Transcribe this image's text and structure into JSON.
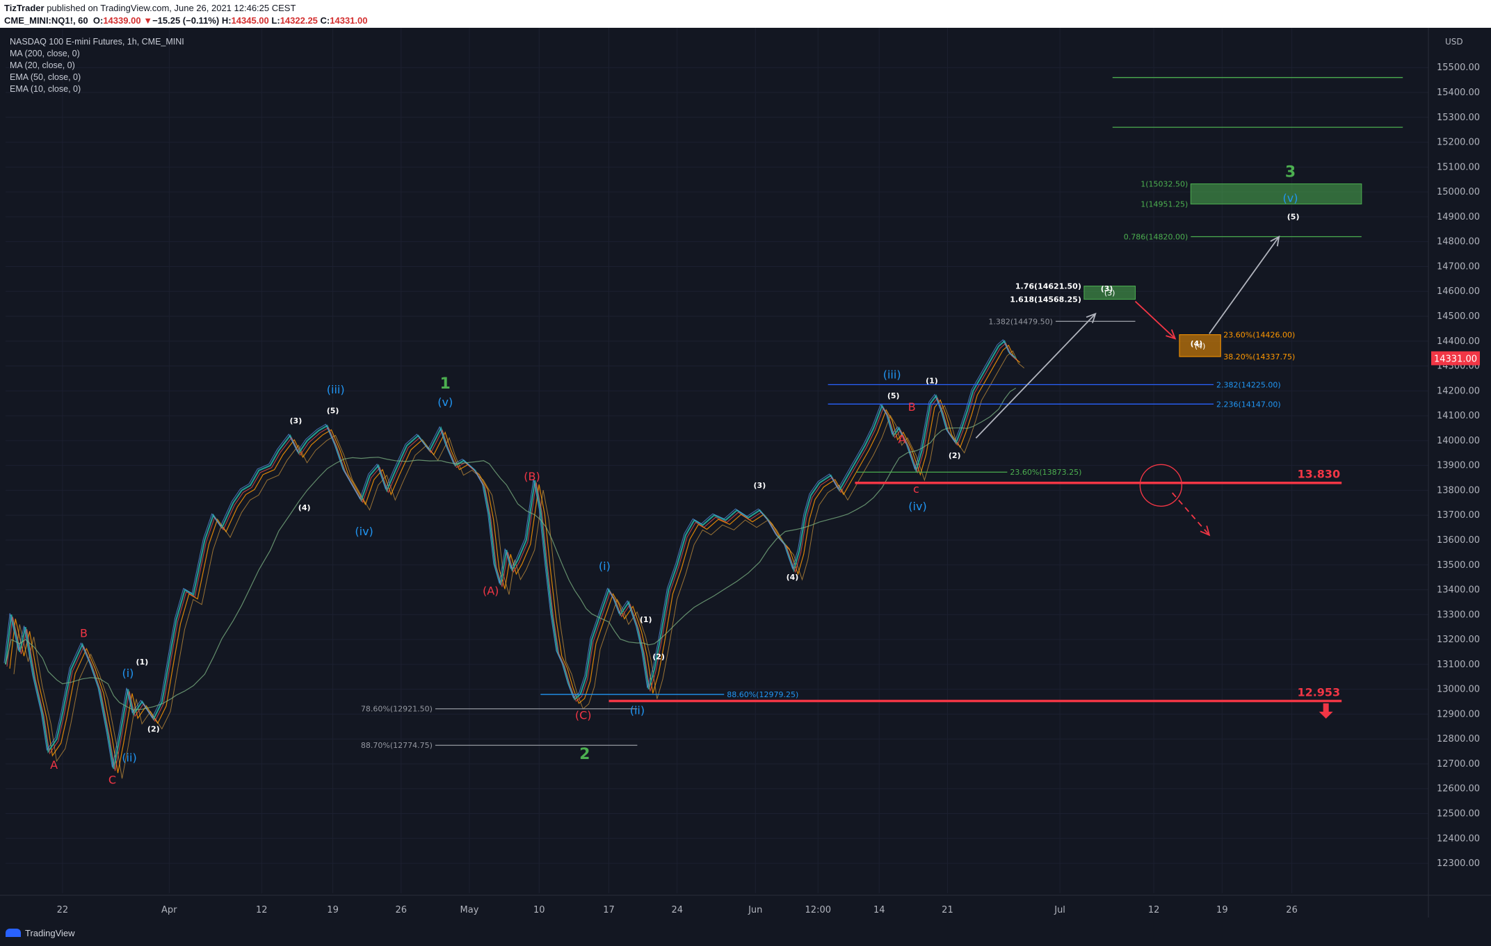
{
  "header": {
    "author": "TizTrader",
    "published": "published on TradingView.com, June 26, 2021 12:46:25 CEST",
    "symbol": "CME_MINI:NQ1!, 60",
    "open": "14339.00",
    "change": "−15.25 (−0.11%)",
    "high": "14345.00",
    "low": "14322.25",
    "close": "14331.00"
  },
  "legend": [
    "NASDAQ 100 E-mini Futures, 1h, CME_MINI",
    "MA (200, close, 0)",
    "MA (20, close, 0)",
    "EMA (50, close, 0)",
    "EMA (10, close, 0)"
  ],
  "currency": "USD",
  "current_price_tag": "14331.00",
  "footer": {
    "brand": "TradingView"
  },
  "colors": {
    "background": "#131722",
    "axis_text": "#b2b5be",
    "green": "#4caf50",
    "blue": "#2196f3",
    "red": "#f23645",
    "orange": "#ff9800",
    "white": "#ffffff"
  },
  "chart_data": {
    "type": "line",
    "yaxis": {
      "min": 12200,
      "max": 15600,
      "ticks": [
        12300,
        12400,
        12500,
        12600,
        12700,
        12800,
        12900,
        13000,
        13100,
        13200,
        13300,
        13400,
        13500,
        13600,
        13700,
        13800,
        13900,
        14000,
        14100,
        14200,
        14300,
        14400,
        14500,
        14600,
        14700,
        14800,
        14900,
        15000,
        15100,
        15200,
        15300,
        15400,
        15500
      ],
      "tick_labels": [
        "12300.00",
        "12400.00",
        "12500.00",
        "12600.00",
        "12700.00",
        "12800.00",
        "12900.00",
        "13000.00",
        "13100.00",
        "13200.00",
        "13300.00",
        "13400.00",
        "13500.00",
        "13600.00",
        "13700.00",
        "13800.00",
        "13900.00",
        "14000.00",
        "14100.00",
        "14200.00",
        "14300.00",
        "14400.00",
        "14500.00",
        "14600.00",
        "14700.00",
        "14800.00",
        "14900.00",
        "15000.00",
        "15100.00",
        "15200.00",
        "15300.00",
        "15400.00",
        "15500.00"
      ]
    },
    "xaxis": {
      "min": 0,
      "max": 1000,
      "ticks": [
        {
          "x": 40,
          "label": "22"
        },
        {
          "x": 115,
          "label": "Apr"
        },
        {
          "x": 180,
          "label": "12"
        },
        {
          "x": 230,
          "label": "19"
        },
        {
          "x": 278,
          "label": "26"
        },
        {
          "x": 326,
          "label": "May"
        },
        {
          "x": 375,
          "label": "10"
        },
        {
          "x": 424,
          "label": "17"
        },
        {
          "x": 472,
          "label": "24"
        },
        {
          "x": 527,
          "label": "Jun"
        },
        {
          "x": 571,
          "label": "12:00"
        },
        {
          "x": 614,
          "label": "14"
        },
        {
          "x": 662,
          "label": "21"
        },
        {
          "x": 741,
          "label": "Jul"
        },
        {
          "x": 807,
          "label": "12"
        },
        {
          "x": 855,
          "label": "19"
        },
        {
          "x": 904,
          "label": "26"
        }
      ]
    },
    "series": [
      {
        "values": [
          [
            0,
            13100
          ],
          [
            4,
            13300
          ],
          [
            10,
            13150
          ],
          [
            14,
            13250
          ],
          [
            20,
            13050
          ],
          [
            26,
            12900
          ],
          [
            30,
            12750
          ],
          [
            36,
            12800
          ],
          [
            40,
            12900
          ],
          [
            46,
            13080
          ],
          [
            54,
            13180
          ],
          [
            60,
            13100
          ],
          [
            66,
            13000
          ],
          [
            72,
            12820
          ],
          [
            76,
            12680
          ],
          [
            80,
            12800
          ],
          [
            86,
            13000
          ],
          [
            90,
            12900
          ],
          [
            96,
            12950
          ],
          [
            104,
            12880
          ],
          [
            110,
            12950
          ],
          [
            116,
            13150
          ],
          [
            120,
            13280
          ],
          [
            126,
            13400
          ],
          [
            132,
            13380
          ],
          [
            140,
            13600
          ],
          [
            146,
            13700
          ],
          [
            152,
            13650
          ],
          [
            160,
            13750
          ],
          [
            166,
            13800
          ],
          [
            172,
            13820
          ],
          [
            178,
            13880
          ],
          [
            186,
            13900
          ],
          [
            192,
            13960
          ],
          [
            200,
            14020
          ],
          [
            206,
            13950
          ],
          [
            212,
            14000
          ],
          [
            220,
            14040
          ],
          [
            226,
            14060
          ],
          [
            232,
            13980
          ],
          [
            238,
            13880
          ],
          [
            244,
            13820
          ],
          [
            250,
            13760
          ],
          [
            256,
            13860
          ],
          [
            262,
            13900
          ],
          [
            268,
            13800
          ],
          [
            274,
            13880
          ],
          [
            282,
            13980
          ],
          [
            290,
            14020
          ],
          [
            298,
            13960
          ],
          [
            306,
            14050
          ],
          [
            310,
            13980
          ],
          [
            316,
            13900
          ],
          [
            322,
            13920
          ],
          [
            330,
            13880
          ],
          [
            336,
            13820
          ],
          [
            340,
            13700
          ],
          [
            344,
            13500
          ],
          [
            348,
            13420
          ],
          [
            352,
            13560
          ],
          [
            356,
            13480
          ],
          [
            360,
            13520
          ],
          [
            366,
            13600
          ],
          [
            372,
            13840
          ],
          [
            376,
            13720
          ],
          [
            380,
            13500
          ],
          [
            384,
            13300
          ],
          [
            388,
            13150
          ],
          [
            392,
            13100
          ],
          [
            396,
            13020
          ],
          [
            400,
            12960
          ],
          [
            404,
            12980
          ],
          [
            408,
            13050
          ],
          [
            412,
            13200
          ],
          [
            418,
            13300
          ],
          [
            424,
            13400
          ],
          [
            428,
            13360
          ],
          [
            432,
            13300
          ],
          [
            438,
            13350
          ],
          [
            444,
            13250
          ],
          [
            448,
            13150
          ],
          [
            452,
            13000
          ],
          [
            456,
            13080
          ],
          [
            460,
            13200
          ],
          [
            466,
            13400
          ],
          [
            472,
            13500
          ],
          [
            478,
            13620
          ],
          [
            484,
            13680
          ],
          [
            490,
            13660
          ],
          [
            498,
            13700
          ],
          [
            506,
            13680
          ],
          [
            514,
            13720
          ],
          [
            522,
            13690
          ],
          [
            530,
            13720
          ],
          [
            536,
            13680
          ],
          [
            542,
            13620
          ],
          [
            548,
            13580
          ],
          [
            554,
            13480
          ],
          [
            558,
            13560
          ],
          [
            562,
            13700
          ],
          [
            566,
            13780
          ],
          [
            572,
            13830
          ],
          [
            580,
            13860
          ],
          [
            586,
            13800
          ],
          [
            592,
            13860
          ],
          [
            598,
            13920
          ],
          [
            604,
            13980
          ],
          [
            610,
            14050
          ],
          [
            616,
            14140
          ],
          [
            620,
            14100
          ],
          [
            624,
            14020
          ],
          [
            628,
            14050
          ],
          [
            634,
            13980
          ],
          [
            640,
            13880
          ],
          [
            644,
            13960
          ],
          [
            650,
            14150
          ],
          [
            654,
            14180
          ],
          [
            658,
            14120
          ],
          [
            662,
            14040
          ],
          [
            668,
            13990
          ],
          [
            672,
            14050
          ],
          [
            676,
            14120
          ],
          [
            680,
            14200
          ],
          [
            686,
            14260
          ],
          [
            692,
            14320
          ],
          [
            698,
            14380
          ],
          [
            702,
            14400
          ],
          [
            706,
            14350
          ],
          [
            710,
            14331
          ]
        ]
      }
    ],
    "wave_labels": [
      {
        "x": 34,
        "y": 12680,
        "text": "A",
        "color": "#f23645"
      },
      {
        "x": 55,
        "y": 13210,
        "text": "B",
        "color": "#f23645"
      },
      {
        "x": 75,
        "y": 12620,
        "text": "C",
        "color": "#f23645"
      },
      {
        "x": 86,
        "y": 13050,
        "text": "(i)",
        "color": "#2196f3"
      },
      {
        "x": 87,
        "y": 12710,
        "text": "(ii)",
        "color": "#2196f3"
      },
      {
        "x": 96,
        "y": 13100,
        "text": "(1)",
        "color": "#ffffff"
      },
      {
        "x": 104,
        "y": 12830,
        "text": "(2)",
        "color": "#ffffff"
      },
      {
        "x": 204,
        "y": 14070,
        "text": "(3)",
        "color": "#ffffff"
      },
      {
        "x": 230,
        "y": 14110,
        "text": "(5)",
        "color": "#ffffff"
      },
      {
        "x": 232,
        "y": 14190,
        "text": "(iii)",
        "color": "#2196f3"
      },
      {
        "x": 210,
        "y": 13720,
        "text": "(4)",
        "color": "#ffffff"
      },
      {
        "x": 252,
        "y": 13620,
        "text": "(iv)",
        "color": "#2196f3"
      },
      {
        "x": 309,
        "y": 14140,
        "text": "(v)",
        "color": "#2196f3"
      },
      {
        "x": 309,
        "y": 14210,
        "text": "1",
        "color": "#4caf50"
      },
      {
        "x": 370,
        "y": 13840,
        "text": "(B)",
        "color": "#f23645"
      },
      {
        "x": 341,
        "y": 13380,
        "text": "(A)",
        "color": "#f23645"
      },
      {
        "x": 406,
        "y": 12880,
        "text": "(C)",
        "color": "#f23645"
      },
      {
        "x": 407,
        "y": 12720,
        "text": "2",
        "color": "#4caf50"
      },
      {
        "x": 421,
        "y": 13480,
        "text": "(i)",
        "color": "#2196f3"
      },
      {
        "x": 444,
        "y": 12900,
        "text": "(ii)",
        "color": "#2196f3"
      },
      {
        "x": 450,
        "y": 13270,
        "text": "(1)",
        "color": "#ffffff"
      },
      {
        "x": 459,
        "y": 13120,
        "text": "(2)",
        "color": "#ffffff"
      },
      {
        "x": 530,
        "y": 13810,
        "text": "(3)",
        "color": "#ffffff"
      },
      {
        "x": 553,
        "y": 13440,
        "text": "(4)",
        "color": "#ffffff"
      },
      {
        "x": 624,
        "y": 14170,
        "text": "(5)",
        "color": "#ffffff"
      },
      {
        "x": 623,
        "y": 14250,
        "text": "(iii)",
        "color": "#2196f3"
      },
      {
        "x": 630,
        "y": 13990,
        "text": "A",
        "color": "#f23645"
      },
      {
        "x": 637,
        "y": 14120,
        "text": "B",
        "color": "#f23645"
      },
      {
        "x": 640,
        "y": 13790,
        "text": "c",
        "color": "#f23645"
      },
      {
        "x": 641,
        "y": 13720,
        "text": "(iv)",
        "color": "#2196f3"
      },
      {
        "x": 651,
        "y": 14230,
        "text": "(1)",
        "color": "#ffffff"
      },
      {
        "x": 667,
        "y": 13930,
        "text": "(2)",
        "color": "#ffffff"
      },
      {
        "x": 774,
        "y": 14600,
        "text": "(3)",
        "color": "#ffffff"
      },
      {
        "x": 837,
        "y": 14380,
        "text": "(4)",
        "color": "#ffffff"
      },
      {
        "x": 903,
        "y": 14960,
        "text": "(v)",
        "color": "#2196f3"
      },
      {
        "x": 903,
        "y": 15060,
        "text": "3",
        "color": "#4caf50"
      },
      {
        "x": 905,
        "y": 14890,
        "text": "(5)",
        "color": "#ffffff"
      }
    ],
    "levels": [
      {
        "x1": 578,
        "x2": 849,
        "y": 14225,
        "color": "#2962ff",
        "label": "2.382(14225.00)"
      },
      {
        "x1": 578,
        "x2": 849,
        "y": 14147,
        "color": "#2962ff",
        "label": "2.236(14147.00)"
      },
      {
        "x1": 598,
        "x2": 704,
        "y": 13873.25,
        "color": "#4caf50",
        "label": "23.60%(13873.25)"
      },
      {
        "x1": 376,
        "x2": 505,
        "y": 12979.25,
        "color": "#2196f3",
        "label": "88.60%(12979.25)"
      },
      {
        "x1": 302,
        "x2": 444,
        "y": 12921.5,
        "color": "#9598a1",
        "label": "78.60%(12921.50)"
      },
      {
        "x1": 302,
        "x2": 444,
        "y": 12774.75,
        "color": "#9598a1",
        "label": "88.70%(12774.75)"
      },
      {
        "x1": 738,
        "x2": 794,
        "y": 14479.5,
        "color": "#9598a1",
        "label": "1.382(14479.50)"
      },
      {
        "x1": 833,
        "x2": 953,
        "y": 14820,
        "color": "#4caf50",
        "label": "0.786(14820.00)"
      },
      {
        "x1": 778,
        "x2": 982,
        "y": 15460,
        "color": "#4caf50",
        "label": ""
      },
      {
        "x1": 778,
        "x2": 982,
        "y": 15260,
        "color": "#4caf50",
        "label": ""
      }
    ],
    "zones": [
      {
        "x1": 758,
        "x2": 794,
        "y1": 14568.25,
        "y2": 14621.5,
        "color": "#4caf50",
        "label": "(3)",
        "lab1": "1.76(14621.50)",
        "lab2": "1.618(14568.25)"
      },
      {
        "x1": 833,
        "x2": 953,
        "y1": 14951.25,
        "y2": 15032.5,
        "color": "#4caf50",
        "label": "",
        "lab1": "1(15032.50)",
        "lab2": "1(14951.25)"
      },
      {
        "x1": 825,
        "x2": 854,
        "y1": 14337.75,
        "y2": 14426,
        "color": "#ff9800",
        "label": "(4)",
        "lab1": "23.60%(14426.00)",
        "lab2": "38.20%(14337.75)"
      }
    ],
    "key_levels": [
      {
        "x1": 597,
        "x2": 939,
        "y": 13830,
        "color": "#f23645",
        "label": "13.830"
      },
      {
        "x1": 424,
        "x2": 939,
        "y": 12953,
        "color": "#f23645",
        "label": "12.953"
      }
    ]
  }
}
